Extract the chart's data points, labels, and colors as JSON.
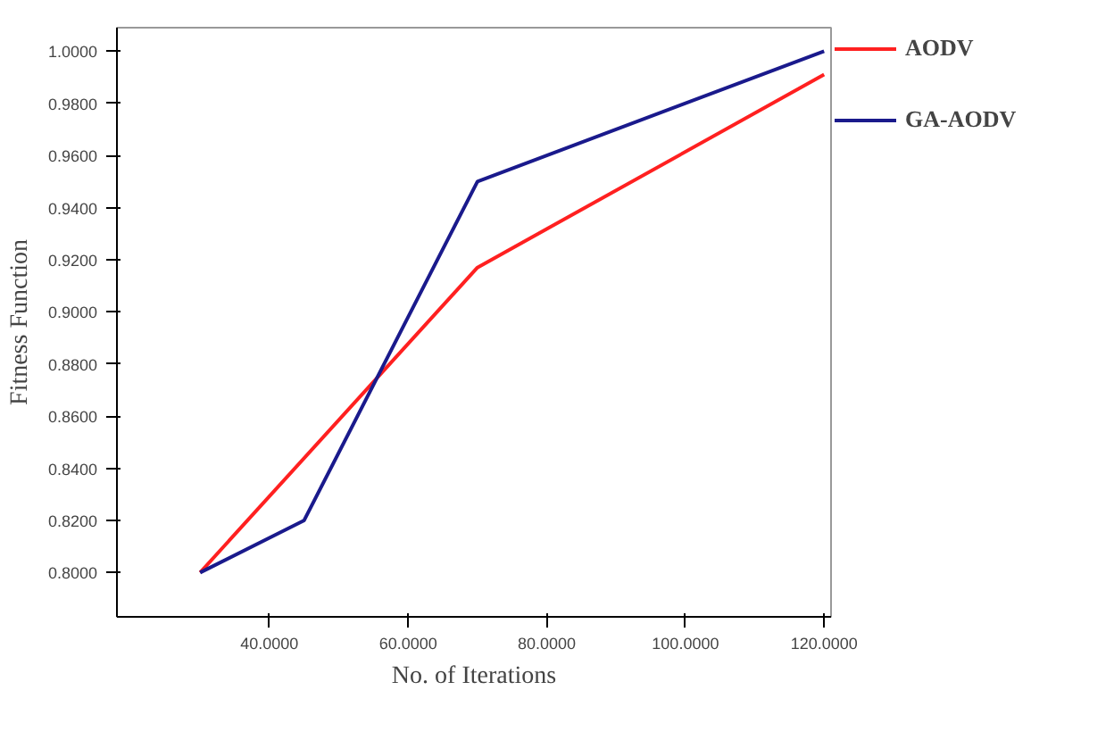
{
  "chart_data": {
    "type": "line",
    "xlabel": "No. of Iterations",
    "ylabel": "Fitness Function",
    "series": [
      {
        "name": "AODV",
        "color": "#ff2020",
        "x": [
          30,
          70,
          120
        ],
        "values": [
          0.8,
          0.917,
          0.991
        ]
      },
      {
        "name": "GA-AODV",
        "color": "#1a1a8c",
        "x": [
          30,
          45,
          70,
          120
        ],
        "values": [
          0.8,
          0.82,
          0.95,
          1.0
        ]
      }
    ],
    "xlim": [
      18,
      121
    ],
    "ylim": [
      0.783,
      1.009
    ],
    "xticks": [
      {
        "value": 40,
        "label": "40.0000"
      },
      {
        "value": 60,
        "label": "60.0000"
      },
      {
        "value": 80,
        "label": "80.0000"
      },
      {
        "value": 100,
        "label": "100.0000"
      },
      {
        "value": 120,
        "label": "120.0000"
      }
    ],
    "yticks": [
      {
        "value": 0.8,
        "label": "0.8000"
      },
      {
        "value": 0.82,
        "label": "0.8200"
      },
      {
        "value": 0.84,
        "label": "0.8400"
      },
      {
        "value": 0.86,
        "label": "0.8600"
      },
      {
        "value": 0.88,
        "label": "0.8800"
      },
      {
        "value": 0.9,
        "label": "0.9000"
      },
      {
        "value": 0.92,
        "label": "0.9200"
      },
      {
        "value": 0.94,
        "label": "0.9400"
      },
      {
        "value": 0.96,
        "label": "0.9600"
      },
      {
        "value": 0.98,
        "label": "0.9800"
      },
      {
        "value": 1.0,
        "label": "1.0000"
      }
    ],
    "grid": false,
    "legend": "right",
    "marker": "none",
    "line_style": "solid"
  }
}
